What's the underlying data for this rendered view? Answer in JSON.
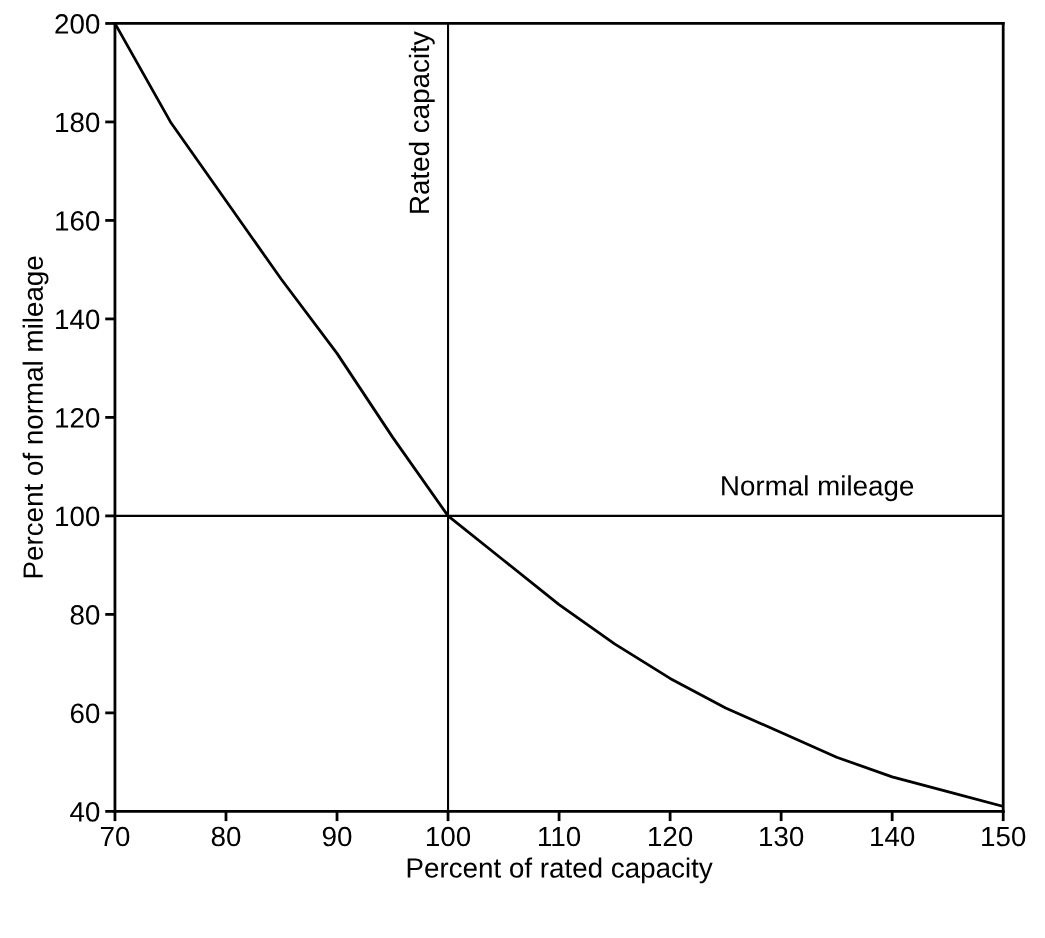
{
  "chart_data": {
    "type": "line",
    "xlabel": "Percent of rated capacity",
    "ylabel": "Percent of normal mileage",
    "x": [
      70,
      75,
      80,
      85,
      90,
      95,
      100,
      105,
      110,
      115,
      120,
      125,
      130,
      135,
      140,
      145,
      150
    ],
    "series": [
      {
        "color": "#000000",
        "values": [
          200,
          180,
          164,
          148,
          133,
          116,
          100,
          91,
          82,
          74,
          67,
          61,
          56,
          51,
          47,
          44,
          41
        ]
      }
    ],
    "xlim": [
      70,
      150
    ],
    "xticks": [
      70,
      80,
      90,
      100,
      110,
      120,
      130,
      140,
      150
    ],
    "ylim": [
      40,
      200
    ],
    "yticks": [
      40,
      60,
      80,
      100,
      120,
      140,
      160,
      180,
      200
    ],
    "ref_lines": [
      {
        "axis": "x",
        "value": 100,
        "label": "Rated capacity",
        "color": "#000000"
      },
      {
        "axis": "y",
        "value": 100,
        "label": "Normal mileage",
        "color": "#000000"
      }
    ],
    "grid": false,
    "legend": false,
    "marker": "none",
    "line_style": "solid"
  }
}
